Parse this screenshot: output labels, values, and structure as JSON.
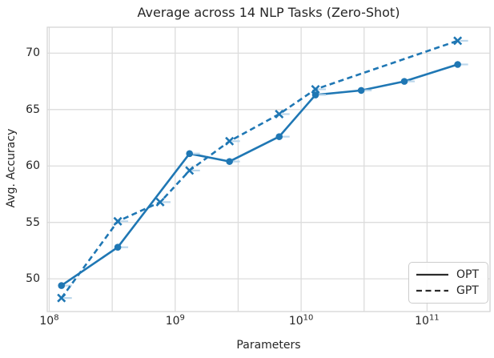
{
  "chart_data": {
    "type": "line",
    "title": "Average across 14 NLP Tasks (Zero-Shot)",
    "xlabel": "Parameters",
    "ylabel": "Avg. Accuracy",
    "x_scale": "log",
    "xlim": [
      96400000,
      316000000000
    ],
    "ylim": [
      47.1,
      72.3
    ],
    "yticks": [
      50,
      55,
      60,
      65,
      70
    ],
    "xticks": [
      {
        "label_base": "10",
        "label_exp": "8",
        "value": 100000000
      },
      {
        "label_base": "10",
        "label_exp": "9",
        "value": 1000000000
      },
      {
        "label_base": "10",
        "label_exp": "10",
        "value": 10000000000
      },
      {
        "label_base": "10",
        "label_exp": "11",
        "value": 100000000000
      }
    ],
    "grid": {
      "on": true,
      "vertical_minor": "half-decade"
    },
    "series": [
      {
        "name": "OPT",
        "style": "solid",
        "marker": "circle",
        "color": "#1f77b4",
        "x": [
          125000000,
          350000000,
          1300000000,
          2700000000,
          6700000000,
          13000000000,
          30000000000,
          66000000000,
          175000000000
        ],
        "y": [
          49.4,
          52.8,
          61.1,
          60.4,
          62.6,
          66.3,
          66.7,
          67.5,
          69.0
        ]
      },
      {
        "name": "GPT",
        "style": "dashed",
        "marker": "x",
        "color": "#1f77b4",
        "x": [
          125000000,
          350000000,
          760000000,
          1300000000,
          2700000000,
          6700000000,
          13000000000,
          175000000000
        ],
        "y": [
          48.3,
          55.1,
          56.8,
          59.6,
          62.2,
          64.6,
          66.8,
          71.1
        ]
      }
    ],
    "legend": {
      "position": "lower right",
      "handle_color": "#2b2b2b",
      "items": [
        {
          "label": "OPT",
          "style": "solid"
        },
        {
          "label": "GPT",
          "style": "dashed"
        }
      ]
    }
  },
  "colors": {
    "accent_blue": "#1f77b4",
    "grid": "#dcdcdc",
    "frame": "#d6d6d6",
    "text": "#262626",
    "legend_border": "#cccccc",
    "marker_ghost": "#bcd7eb",
    "background": "#ffffff"
  }
}
